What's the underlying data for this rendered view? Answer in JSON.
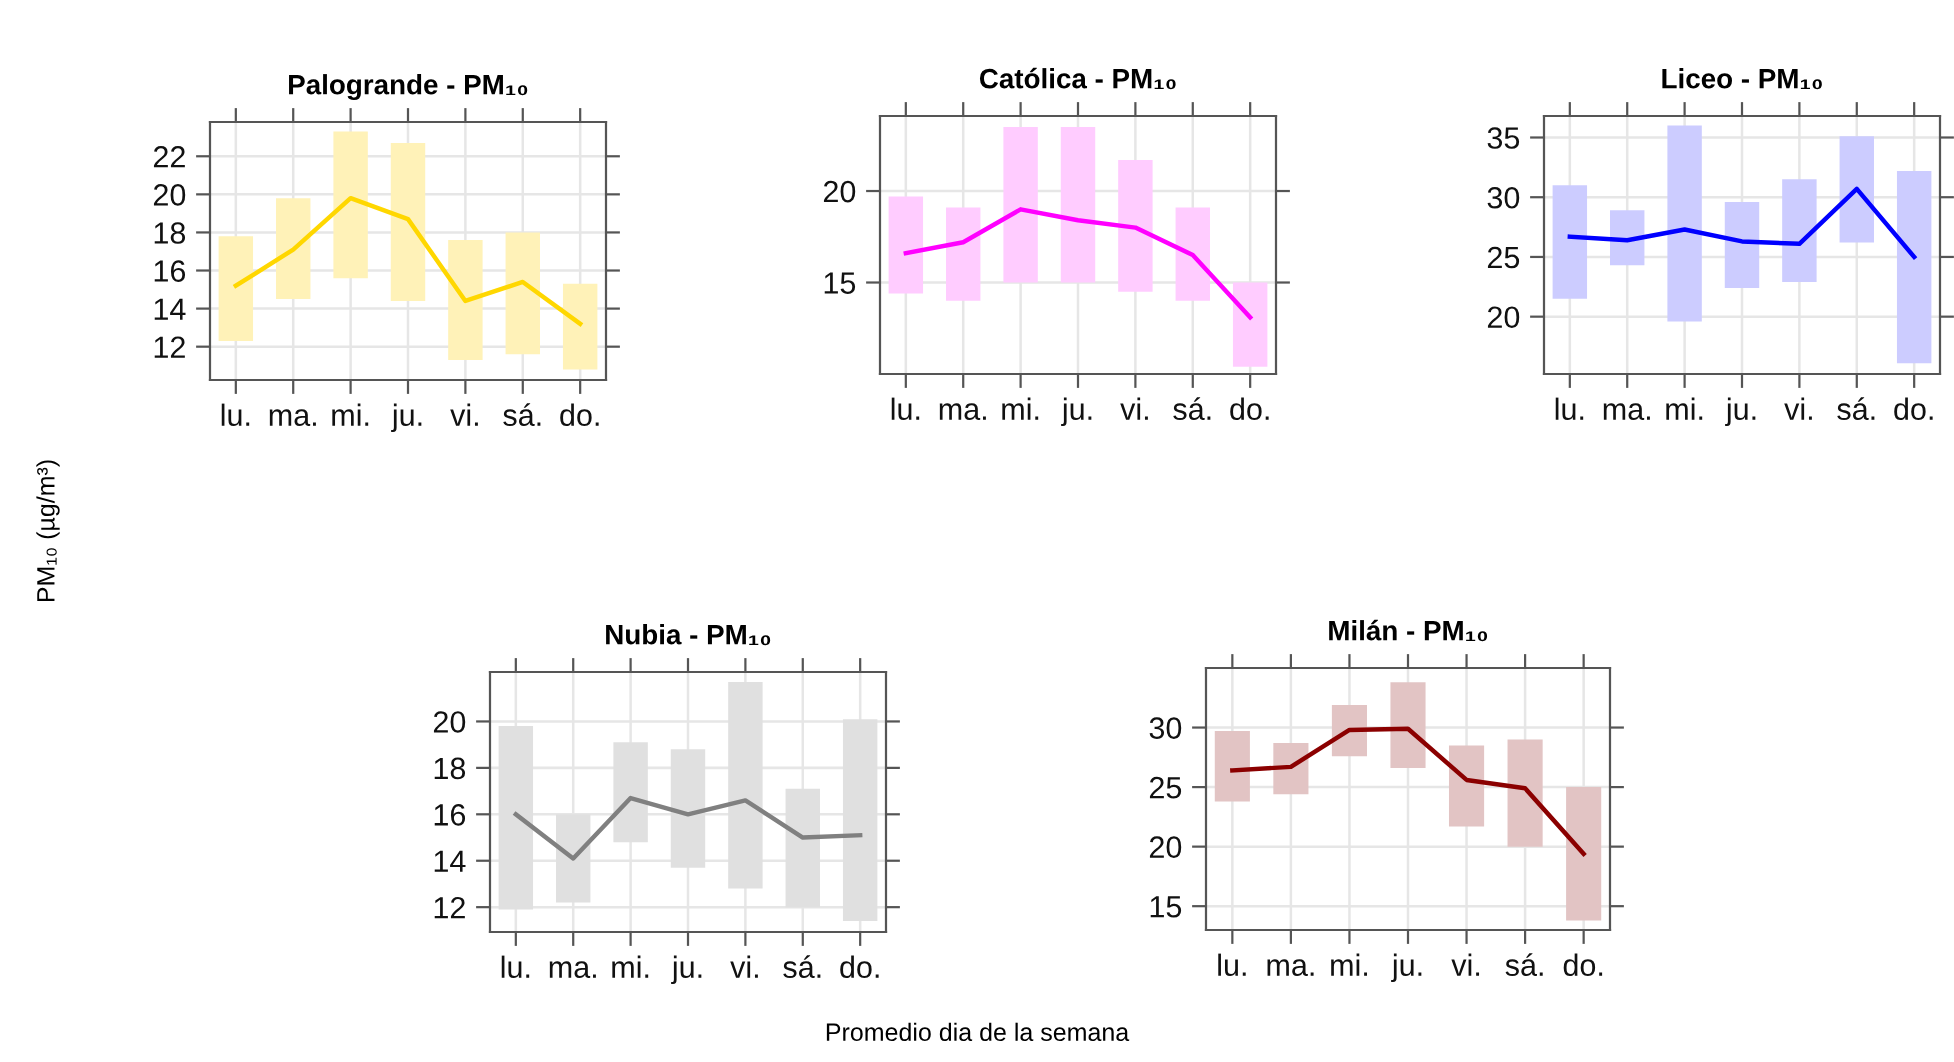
{
  "chart_data": [
    {
      "type": "line",
      "title": "Palogrande - PM₁₀",
      "ylabel": "PM₁₀ (µg/m³)",
      "categories": [
        "lu.",
        "ma.",
        "mi.",
        "ju.",
        "vi.",
        "sá.",
        "do."
      ],
      "ylim": [
        10.25,
        23.8
      ],
      "yticks": [
        12,
        14,
        16,
        18,
        20,
        22
      ],
      "grid": true,
      "series": [
        {
          "type": "bar",
          "color": "#fff2b8",
          "base": [
            12.3,
            14.5,
            15.6,
            14.4,
            11.3,
            11.6,
            10.8
          ],
          "values": [
            5.5,
            5.3,
            7.7,
            8.3,
            6.3,
            6.4,
            4.5
          ]
        },
        {
          "color": "#ffd700",
          "values": [
            15.2,
            17.1,
            19.8,
            18.7,
            14.4,
            15.4,
            13.2
          ]
        }
      ]
    },
    {
      "type": "line",
      "title": "Católica - PM₁₀",
      "categories": [
        "lu.",
        "ma.",
        "mi.",
        "ju.",
        "vi.",
        "sá.",
        "do."
      ],
      "ylim": [
        10.0,
        24.1
      ],
      "yticks": [
        15,
        20
      ],
      "grid": true,
      "series": [
        {
          "type": "bar",
          "color": "#ffccff",
          "base": [
            14.4,
            14.0,
            15.0,
            15.0,
            14.5,
            14.0,
            10.4
          ],
          "values": [
            5.3,
            5.1,
            8.5,
            8.5,
            7.2,
            5.1,
            4.6
          ]
        },
        {
          "color": "#ff00ff",
          "values": [
            16.6,
            17.2,
            19.0,
            18.4,
            18.0,
            16.5,
            13.1
          ]
        }
      ]
    },
    {
      "type": "line",
      "title": "Liceo - PM₁₀",
      "categories": [
        "lu.",
        "ma.",
        "mi.",
        "ju.",
        "vi.",
        "sá.",
        "do."
      ],
      "ylim": [
        15.2,
        36.8
      ],
      "yticks": [
        20,
        25,
        30,
        35
      ],
      "grid": true,
      "series": [
        {
          "type": "bar",
          "color": "#ccccff",
          "base": [
            21.5,
            24.3,
            19.6,
            22.4,
            22.9,
            26.2,
            16.1
          ],
          "values": [
            9.5,
            4.6,
            16.4,
            7.2,
            8.6,
            8.9,
            16.1
          ]
        },
        {
          "color": "#0000ff",
          "values": [
            26.7,
            26.4,
            27.3,
            26.3,
            26.1,
            30.7,
            25.0
          ]
        }
      ]
    },
    {
      "type": "line",
      "title": "Nubia - PM₁₀",
      "categories": [
        "lu.",
        "ma.",
        "mi.",
        "ju.",
        "vi.",
        "sá.",
        "do."
      ],
      "ylim": [
        10.93,
        22.13
      ],
      "yticks": [
        12,
        14,
        16,
        18,
        20
      ],
      "grid": true,
      "series": [
        {
          "type": "bar",
          "color": "#e0e0e0",
          "base": [
            11.9,
            12.2,
            14.8,
            13.7,
            12.8,
            12.0,
            11.4
          ],
          "values": [
            7.9,
            3.8,
            4.3,
            5.1,
            8.9,
            5.1,
            8.7
          ]
        },
        {
          "color": "#808080",
          "values": [
            16.0,
            14.1,
            16.7,
            16.0,
            16.6,
            15.0,
            15.1
          ]
        }
      ]
    },
    {
      "type": "line",
      "title": "Milán - PM₁₀",
      "xlabel": "Promedio dia de la semana",
      "categories": [
        "lu.",
        "ma.",
        "mi.",
        "ju.",
        "vi.",
        "sá.",
        "do."
      ],
      "ylim": [
        13.0,
        35.0
      ],
      "yticks": [
        15,
        20,
        25,
        30
      ],
      "grid": true,
      "series": [
        {
          "type": "bar",
          "color": "#e2c4c4",
          "base": [
            23.8,
            24.4,
            27.6,
            26.6,
            21.7,
            20.0,
            13.8
          ],
          "values": [
            5.9,
            4.3,
            4.3,
            7.2,
            6.8,
            9.0,
            11.2
          ]
        },
        {
          "color": "#8b0000",
          "values": [
            26.4,
            26.7,
            29.8,
            29.9,
            25.6,
            24.9,
            19.4
          ]
        }
      ]
    }
  ]
}
